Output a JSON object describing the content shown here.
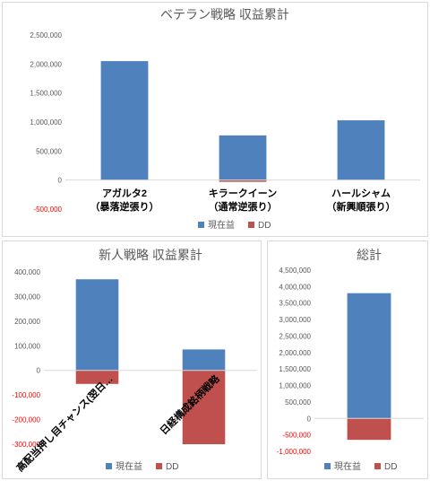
{
  "colors": {
    "profit": "#4f81bd",
    "dd": "#c0504d",
    "axis": "#d9d9d9",
    "text": "#595959"
  },
  "chart_data": [
    {
      "type": "bar",
      "stacked": true,
      "title": "ベテラン戦略 収益累計",
      "categories": [
        [
          "アガルタ2",
          "（暴落逆張り）"
        ],
        [
          "キラークイーン",
          "（通常逆張り）"
        ],
        [
          "ハールシャム",
          "（新興順張り）"
        ]
      ],
      "series": [
        {
          "name": "現在益",
          "values": [
            2050000,
            770000,
            1030000
          ]
        },
        {
          "name": "DD",
          "values": [
            0,
            -30000,
            0
          ]
        }
      ],
      "ylim": [
        -500000,
        2500000
      ],
      "yticks": [
        "-500,000",
        "0",
        "500,000",
        "1,000,000",
        "1,500,000",
        "2,000,000",
        "2,500,000"
      ],
      "legend": "bottom"
    },
    {
      "type": "bar",
      "stacked": true,
      "title": "新人戦略 収益累計",
      "categories": [
        "高配当押し目チャンス(翌日…",
        "日経構成銘柄戦略"
      ],
      "series": [
        {
          "name": "現在益",
          "values": [
            370000,
            85000
          ]
        },
        {
          "name": "DD",
          "values": [
            -55000,
            -300000
          ]
        }
      ],
      "ylim": [
        -300000,
        400000
      ],
      "yticks": [
        "-300,000",
        "-200,000",
        "-100,000",
        "0",
        "100,000",
        "200,000",
        "300,000",
        "400,000"
      ],
      "legend": "bottom"
    },
    {
      "type": "bar",
      "stacked": true,
      "title": "総計",
      "categories": [
        ""
      ],
      "series": [
        {
          "name": "現在益",
          "values": [
            3800000
          ]
        },
        {
          "name": "DD",
          "values": [
            -650000
          ]
        }
      ],
      "ylim": [
        -1000000,
        4500000
      ],
      "yticks": [
        "-1,000,000",
        "-500,000",
        "0",
        "500,000",
        "1,000,000",
        "1,500,000",
        "2,000,000",
        "2,500,000",
        "3,000,000",
        "3,500,000",
        "4,000,000",
        "4,500,000"
      ],
      "legend": "bottom"
    }
  ]
}
